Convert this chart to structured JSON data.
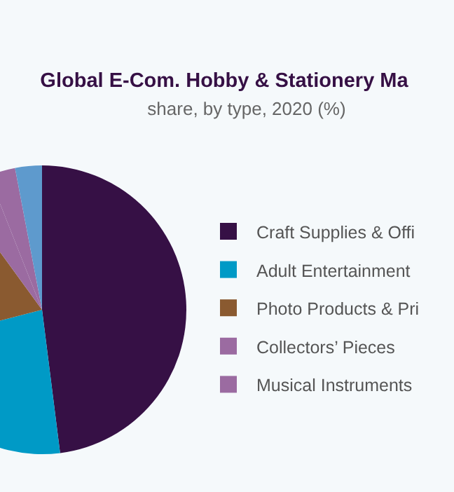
{
  "chart_data": {
    "type": "pie",
    "title": "Global E-Com. Hobby & Stationery Ma",
    "subtitle": "share, by type, 2020 (%)",
    "categories": [
      "Craft Supplies & Offi",
      "Adult Entertainment",
      "Photo Products & Pri",
      "Collectors’ Pieces",
      "Musical Instruments",
      null
    ],
    "values": [
      48,
      23,
      19,
      4,
      3,
      3
    ],
    "colors": [
      "#361045",
      "#009ac6",
      "#8a5a30",
      "#9b6ba1",
      "#9b6ba1",
      "#5e9acd"
    ],
    "legend": "right"
  }
}
